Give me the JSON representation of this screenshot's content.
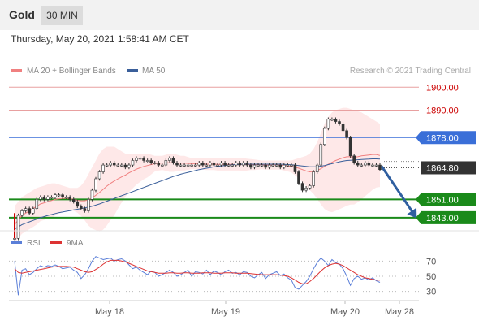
{
  "header": {
    "title": "Gold",
    "timeframe": "30 MIN"
  },
  "datetime": "Thursday, May 20, 2021 1:58:41 AM CET",
  "legend": {
    "ma20": "MA 20 + Bollinger Bands",
    "ma50": "MA 50",
    "source": "Research © 2021 Trading Central"
  },
  "rsi_legend": {
    "rsi": "RSI",
    "ma9": "9MA"
  },
  "colors": {
    "resistance": "#e8a0a0",
    "resistance_text": "#cc0000",
    "pivot": "#3a6fd8",
    "support": "#1a8a1a",
    "current": "#333333",
    "ma20": "#f08080",
    "ma50": "#3a5f9a",
    "rsi": "#5b7fd8",
    "rsi_ma": "#dd3333",
    "band": "#fde0e0",
    "arrow": "#2f5fa0"
  },
  "chart_data": {
    "type": "line",
    "price_axis": {
      "range": [
        1838,
        1904
      ]
    },
    "levels": [
      {
        "label": "1900.00",
        "value": 1900.0,
        "role": "resistance"
      },
      {
        "label": "1890.00",
        "value": 1890.0,
        "role": "resistance"
      },
      {
        "label": "1878.00",
        "value": 1878.0,
        "role": "pivot"
      },
      {
        "label": "1864.80",
        "value": 1864.8,
        "role": "current"
      },
      {
        "label": "1851.00",
        "value": 1851.0,
        "role": "support"
      },
      {
        "label": "1843.00",
        "value": 1843.0,
        "role": "support"
      }
    ],
    "x_ticks": [
      "May 18",
      "May 19",
      "May 20",
      "May 28"
    ],
    "price_series": {
      "name": "Gold (30 min)",
      "values": [
        1834,
        1844,
        1846,
        1847,
        1845,
        1847,
        1851,
        1852,
        1851,
        1852,
        1852,
        1853,
        1853,
        1852,
        1852,
        1851,
        1850,
        1848,
        1847,
        1846,
        1851,
        1855,
        1860,
        1863,
        1866,
        1866,
        1867,
        1866,
        1866,
        1866,
        1865,
        1866,
        1868,
        1869,
        1869,
        1868,
        1868,
        1867,
        1867,
        1866,
        1866,
        1868,
        1869,
        1867,
        1866,
        1866,
        1866,
        1866,
        1866,
        1866,
        1867,
        1866,
        1866,
        1867,
        1866,
        1866,
        1867,
        1866,
        1866,
        1866,
        1867,
        1866,
        1867,
        1866,
        1865,
        1866,
        1866,
        1866,
        1865,
        1866,
        1866,
        1866,
        1865,
        1866,
        1866,
        1866,
        1863,
        1858,
        1855,
        1856,
        1857,
        1863,
        1866,
        1875,
        1882,
        1886,
        1886,
        1885,
        1884,
        1881,
        1878,
        1870,
        1867,
        1866,
        1866,
        1867,
        1866,
        1866,
        1866,
        1864
      ]
    },
    "ma20_values": [
      1840,
      1842,
      1844,
      1845,
      1846,
      1847,
      1848,
      1849,
      1849.5,
      1850,
      1850.5,
      1851,
      1851.2,
      1851.4,
      1851.5,
      1851.3,
      1851,
      1850.6,
      1850.4,
      1850.4,
      1850.8,
      1851.6,
      1852.8,
      1854,
      1855.4,
      1856.8,
      1858,
      1859,
      1860,
      1860.8,
      1861.6,
      1862.6,
      1863.4,
      1864.2,
      1864.8,
      1865.4,
      1865.8,
      1866.2,
      1866.6,
      1866.8,
      1866.9,
      1867,
      1867,
      1867,
      1866.9,
      1866.8,
      1866.8,
      1866.7,
      1866.6,
      1866.6,
      1866.6,
      1866.5,
      1866.4,
      1866.4,
      1866.4,
      1866.3,
      1866.3,
      1866.3,
      1866.3,
      1866.3,
      1866.3,
      1866.3,
      1866.2,
      1866.2,
      1866.2,
      1866.1,
      1866.1,
      1866.1,
      1866,
      1866,
      1866,
      1866,
      1866,
      1865.8,
      1865.6,
      1865.4,
      1865,
      1864.6,
      1864,
      1863.4,
      1863,
      1863.2,
      1863.6,
      1864.4,
      1865.4,
      1866.4,
      1867.2,
      1868,
      1868.6,
      1869.2,
      1869.6,
      1869.6,
      1869.4,
      1869.6,
      1870,
      1870.2,
      1870.4,
      1870.6,
      1870.6,
      1870.2
    ],
    "ma50_values": [
      1838,
      1839,
      1840,
      1840.6,
      1841.2,
      1841.8,
      1842.4,
      1843,
      1843.5,
      1844,
      1844.4,
      1844.8,
      1845.2,
      1845.5,
      1845.8,
      1846.1,
      1846.4,
      1846.7,
      1847,
      1847.3,
      1847.6,
      1848,
      1848.5,
      1849,
      1849.6,
      1850.2,
      1850.8,
      1851.4,
      1852,
      1852.6,
      1853.2,
      1853.8,
      1854.4,
      1855,
      1855.6,
      1856.2,
      1856.8,
      1857.4,
      1858,
      1858.6,
      1859.2,
      1859.8,
      1860.4,
      1861,
      1861.5,
      1862,
      1862.4,
      1862.8,
      1863.2,
      1863.6,
      1864,
      1864.3,
      1864.6,
      1864.9,
      1865.2,
      1865.4,
      1865.6,
      1865.8,
      1866,
      1866.1,
      1866.2,
      1866.3,
      1866.4,
      1866.4,
      1866.4,
      1866.4,
      1866.4,
      1866.4,
      1866.4,
      1866.4,
      1866.4,
      1866.4,
      1866.4,
      1866.3,
      1866.2,
      1866.1,
      1866,
      1865.8,
      1865.6,
      1865.4,
      1865.2,
      1865.2,
      1865.3,
      1865.5,
      1865.8,
      1866.2,
      1866.6,
      1867,
      1867.4,
      1867.7,
      1868,
      1868.1,
      1868.2,
      1868.3,
      1868.4,
      1868.5,
      1868.6,
      1868.7,
      1868.7,
      1868.6
    ],
    "bollinger": {
      "upper": [
        1848,
        1850,
        1852,
        1853,
        1854,
        1855,
        1856,
        1856.5,
        1857,
        1857.5,
        1858,
        1858,
        1857.5,
        1857,
        1856.5,
        1856,
        1856,
        1856,
        1857,
        1859,
        1862,
        1865,
        1868,
        1871,
        1873,
        1874,
        1874,
        1874,
        1873,
        1872,
        1871,
        1871,
        1871,
        1871,
        1871,
        1871,
        1871,
        1870.5,
        1870,
        1870,
        1870,
        1870.5,
        1871,
        1871,
        1870.5,
        1870,
        1870,
        1869.5,
        1869,
        1869,
        1869,
        1869,
        1869,
        1869,
        1869,
        1869,
        1869,
        1869,
        1869,
        1869,
        1869,
        1869,
        1869,
        1868.8,
        1868.6,
        1868.4,
        1868.2,
        1868,
        1868,
        1868,
        1868,
        1868,
        1868,
        1868,
        1868,
        1868,
        1868.5,
        1869,
        1869.5,
        1870,
        1871,
        1873,
        1876,
        1880,
        1884,
        1887,
        1889,
        1890,
        1890.5,
        1891,
        1891,
        1890.5,
        1890,
        1889.5,
        1889,
        1888,
        1887,
        1886,
        1885,
        1884
      ],
      "lower": [
        1832,
        1834,
        1836,
        1837,
        1838,
        1839,
        1840,
        1841.5,
        1842,
        1842.5,
        1843,
        1844,
        1845,
        1845.8,
        1846.5,
        1846.6,
        1846,
        1845.2,
        1843.8,
        1841.8,
        1839.6,
        1838.2,
        1837.6,
        1837,
        1837.8,
        1839.6,
        1842,
        1844,
        1847,
        1849.6,
        1852.2,
        1854.2,
        1855.8,
        1857.4,
        1858.6,
        1859.8,
        1860.6,
        1861.9,
        1863.2,
        1863.6,
        1863.8,
        1863.5,
        1863,
        1863,
        1863.3,
        1863.6,
        1863.6,
        1863.9,
        1864.2,
        1864.2,
        1864.2,
        1864,
        1863.8,
        1863.8,
        1863.8,
        1863.6,
        1863.6,
        1863.6,
        1863.6,
        1863.6,
        1863.6,
        1863.6,
        1863.4,
        1863.6,
        1863.8,
        1863.8,
        1864,
        1864.2,
        1864,
        1864,
        1864,
        1864,
        1864,
        1863.6,
        1863.2,
        1862.8,
        1861.5,
        1860.2,
        1858.5,
        1856.8,
        1855,
        1853.4,
        1851.2,
        1848.8,
        1846.8,
        1845.8,
        1845.4,
        1846,
        1846.7,
        1847.4,
        1848.2,
        1848.7,
        1848.8,
        1849.7,
        1851,
        1852.4,
        1853.8,
        1855.2,
        1856.2,
        1856.4
      ]
    },
    "rsi_axis": {
      "range": [
        20,
        80
      ],
      "ticks": [
        70,
        50,
        30
      ]
    },
    "rsi_values": [
      70,
      25,
      58,
      60,
      52,
      55,
      60,
      64,
      62,
      64,
      63,
      65,
      63,
      60,
      61,
      62,
      58,
      55,
      47,
      52,
      60,
      70,
      76,
      74,
      72,
      73,
      74,
      70,
      72,
      73,
      70,
      65,
      60,
      62,
      58,
      55,
      52,
      57,
      55,
      50,
      52,
      55,
      58,
      55,
      50,
      52,
      55,
      58,
      50,
      56,
      55,
      53,
      58,
      52,
      57,
      55,
      52,
      56,
      58,
      54,
      55,
      52,
      56,
      55,
      50,
      48,
      52,
      55,
      47,
      52,
      54,
      56,
      51,
      53,
      48,
      45,
      35,
      33,
      38,
      43,
      50,
      60,
      68,
      74,
      70,
      64,
      72,
      68,
      66,
      60,
      50,
      38,
      47,
      50,
      46,
      48,
      45,
      48,
      44,
      42
    ],
    "rsi_ma9_values": [
      60,
      55,
      54,
      55,
      56,
      57,
      58,
      59,
      60,
      61,
      62,
      62.5,
      63,
      63,
      63,
      62.5,
      62,
      60,
      58,
      56,
      55,
      56,
      59,
      62,
      66,
      69,
      71,
      71,
      71,
      70,
      69,
      67,
      65,
      63,
      61,
      59,
      57,
      56,
      55,
      54,
      54,
      54,
      54.5,
      54.5,
      54,
      54,
      54.5,
      54.5,
      54,
      54,
      54,
      54.5,
      54.5,
      54.5,
      54,
      54,
      54,
      54.5,
      54.5,
      54.5,
      54,
      54,
      54,
      54,
      53.5,
      53,
      52.5,
      52,
      52,
      52,
      52,
      52,
      51.5,
      51,
      50,
      48,
      45,
      42,
      40,
      40,
      43,
      47,
      52,
      57,
      61,
      64,
      66,
      67,
      66,
      64,
      61,
      58,
      55,
      52,
      50,
      48,
      47,
      46,
      45,
      45
    ]
  }
}
